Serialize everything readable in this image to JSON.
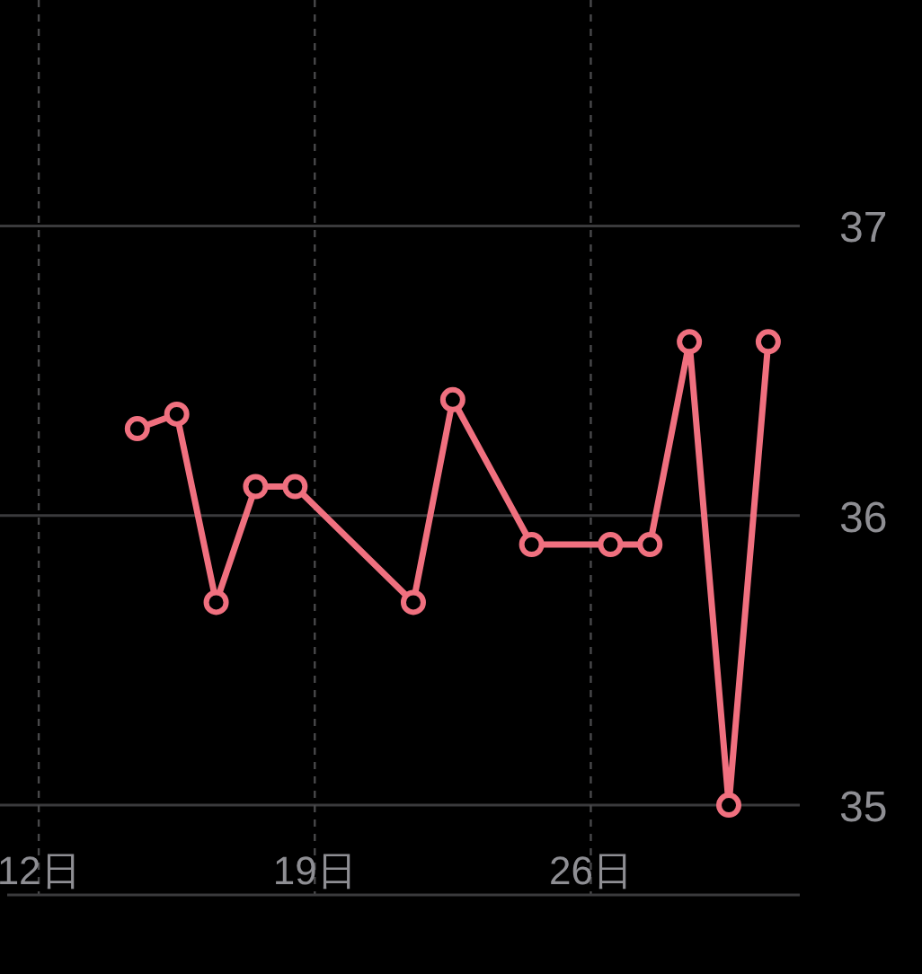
{
  "chart_data": {
    "type": "line",
    "x": [
      14.5,
      15.5,
      16.5,
      17.5,
      18.5,
      21.5,
      22.5,
      24.5,
      26.5,
      27.5,
      28.5,
      29.5,
      30.5
    ],
    "series": [
      {
        "color": "#f0707f",
        "values": [
          36.3,
          36.35,
          35.7,
          36.1,
          36.1,
          35.7,
          36.4,
          35.9,
          35.9,
          35.9,
          36.6,
          35.0,
          36.6
        ]
      }
    ],
    "xlim": [
      11.2,
      31.3
    ],
    "xticks": [
      {
        "value": 12,
        "label": "12日"
      },
      {
        "value": 19,
        "label": "19日"
      },
      {
        "value": 26,
        "label": "26日"
      }
    ],
    "ylim": [
      34.69,
      37.78
    ],
    "yticks": [
      35,
      36,
      37
    ],
    "grid": true,
    "marker": "circle",
    "line_style": "solid"
  }
}
